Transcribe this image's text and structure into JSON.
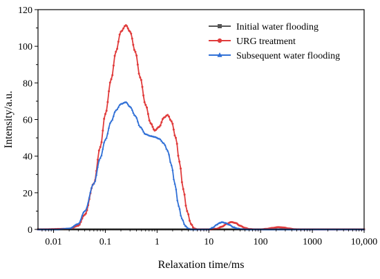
{
  "chart_data": {
    "type": "line",
    "xlabel": "Relaxation time/ms",
    "ylabel": "Intensity/a.u.",
    "x_scale": "log",
    "xlim": [
      0.005,
      10000
    ],
    "ylim": [
      0,
      120
    ],
    "x_ticks": [
      0.01,
      0.1,
      1,
      10,
      100,
      1000,
      10000
    ],
    "x_tick_labels": [
      "0.01",
      "0.1",
      "1",
      "10",
      "100",
      "1000",
      "10,000"
    ],
    "y_ticks": [
      0,
      20,
      40,
      60,
      80,
      100,
      120
    ],
    "y_tick_labels": [
      "0",
      "20",
      "40",
      "60",
      "80",
      "100",
      "120"
    ],
    "legend_position": "top-right",
    "grid": false,
    "series": [
      {
        "name": "Initial water flooding",
        "color": "#555555",
        "marker": "square",
        "x": [
          0.005,
          0.01,
          0.1,
          1,
          10,
          100,
          1000,
          10000
        ],
        "y": [
          0,
          0,
          0,
          0,
          0,
          0,
          0,
          0
        ]
      },
      {
        "name": "URG treatment",
        "color": "#e03b3b",
        "marker": "circle",
        "x": [
          0.005,
          0.02,
          0.03,
          0.04,
          0.06,
          0.08,
          0.1,
          0.13,
          0.16,
          0.2,
          0.25,
          0.3,
          0.38,
          0.47,
          0.6,
          0.75,
          0.9,
          1.1,
          1.35,
          1.6,
          1.9,
          2.3,
          2.7,
          3.2,
          3.8,
          4.5,
          5.2,
          6,
          10,
          14,
          18,
          22,
          27,
          33,
          40,
          50,
          60,
          80,
          100,
          130,
          170,
          220,
          280,
          350,
          450,
          600,
          10000
        ],
        "y": [
          0,
          0.3,
          2,
          8,
          25,
          45,
          63,
          82,
          97,
          108,
          111.5,
          108,
          97,
          83,
          68,
          58,
          54,
          56,
          61,
          62.5,
          59,
          50,
          37,
          22,
          10,
          3,
          0.5,
          0,
          0,
          0.3,
          1.5,
          3,
          4,
          3.5,
          2,
          0.8,
          0.2,
          0,
          0,
          0.3,
          0.8,
          1.2,
          1,
          0.5,
          0.1,
          0,
          0
        ]
      },
      {
        "name": "Subsequent water flooding",
        "color": "#2f6fd6",
        "marker": "triangle",
        "x": [
          0.005,
          0.012,
          0.02,
          0.03,
          0.04,
          0.06,
          0.08,
          0.1,
          0.13,
          0.16,
          0.2,
          0.25,
          0.3,
          0.38,
          0.47,
          0.6,
          0.75,
          0.9,
          1.1,
          1.35,
          1.6,
          1.9,
          2.2,
          2.6,
          3,
          3.5,
          4,
          4.6,
          5.3,
          6,
          10,
          12,
          14,
          16,
          18,
          21,
          25,
          30,
          36,
          45,
          55,
          70,
          100,
          10000
        ],
        "y": [
          0,
          0,
          0.5,
          3,
          10,
          25,
          39,
          49,
          59,
          65,
          68.5,
          69.5,
          67,
          62,
          56,
          52,
          51,
          50.5,
          49.5,
          47,
          43,
          35,
          25,
          13,
          6,
          2,
          0.5,
          0,
          0,
          0,
          0,
          1,
          2.5,
          3.5,
          4,
          3.5,
          2.5,
          1.2,
          0.5,
          0.1,
          0,
          0,
          0,
          0
        ]
      }
    ]
  }
}
